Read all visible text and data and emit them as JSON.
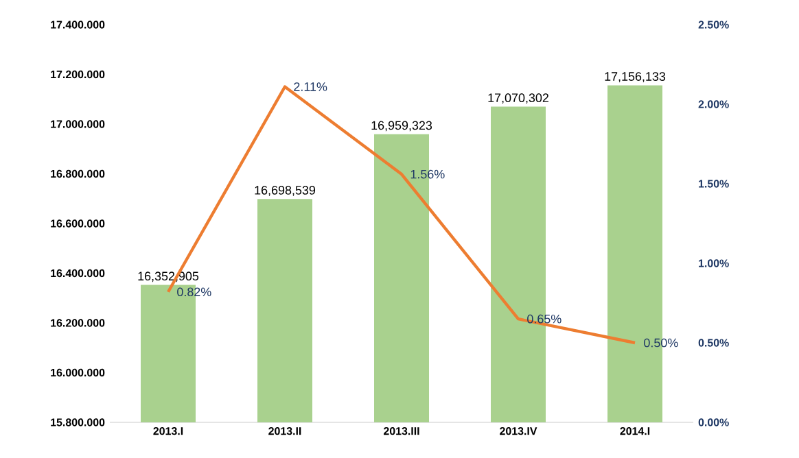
{
  "chart_data": {
    "type": "bar",
    "categories": [
      "2013.I",
      "2013.II",
      "2013.III",
      "2013.IV",
      "2014.I"
    ],
    "series": [
      {
        "color": "#a9d18e",
        "values": [
          16352905,
          16698539,
          16959323,
          17070302,
          17156133
        ],
        "value_labels": [
          "16,352,905",
          "16,698,539",
          "16,959,323",
          "17,070,302",
          "17,156,133"
        ]
      },
      {
        "type": "line",
        "axis": "y2",
        "color": "#ed7d31",
        "values": [
          0.82,
          2.11,
          1.56,
          0.65,
          0.5
        ],
        "value_labels": [
          "0.82%",
          "2.11%",
          "1.56%",
          "0.65%",
          "0.50%"
        ]
      }
    ],
    "ylim": [
      15800000,
      17400000
    ],
    "yticks": [
      {
        "value": 15800000,
        "label": "15.800.000"
      },
      {
        "value": 16000000,
        "label": "16.000.000"
      },
      {
        "value": 16200000,
        "label": "16.200.000"
      },
      {
        "value": 16400000,
        "label": "16.400.000"
      },
      {
        "value": 16600000,
        "label": "16.600.000"
      },
      {
        "value": 16800000,
        "label": "16.800.000"
      },
      {
        "value": 17000000,
        "label": "17.000.000"
      },
      {
        "value": 17200000,
        "label": "17.200.000"
      },
      {
        "value": 17400000,
        "label": "17.400.000"
      }
    ],
    "y2lim": [
      0,
      2.5
    ],
    "y2ticks": [
      {
        "value": 0,
        "label": "0.00%"
      },
      {
        "value": 0.5,
        "label": "0.50%"
      },
      {
        "value": 1,
        "label": "1.00%"
      },
      {
        "value": 1.5,
        "label": "1.50%"
      },
      {
        "value": 2,
        "label": "2.00%"
      },
      {
        "value": 2.5,
        "label": "2.50%"
      }
    ]
  }
}
